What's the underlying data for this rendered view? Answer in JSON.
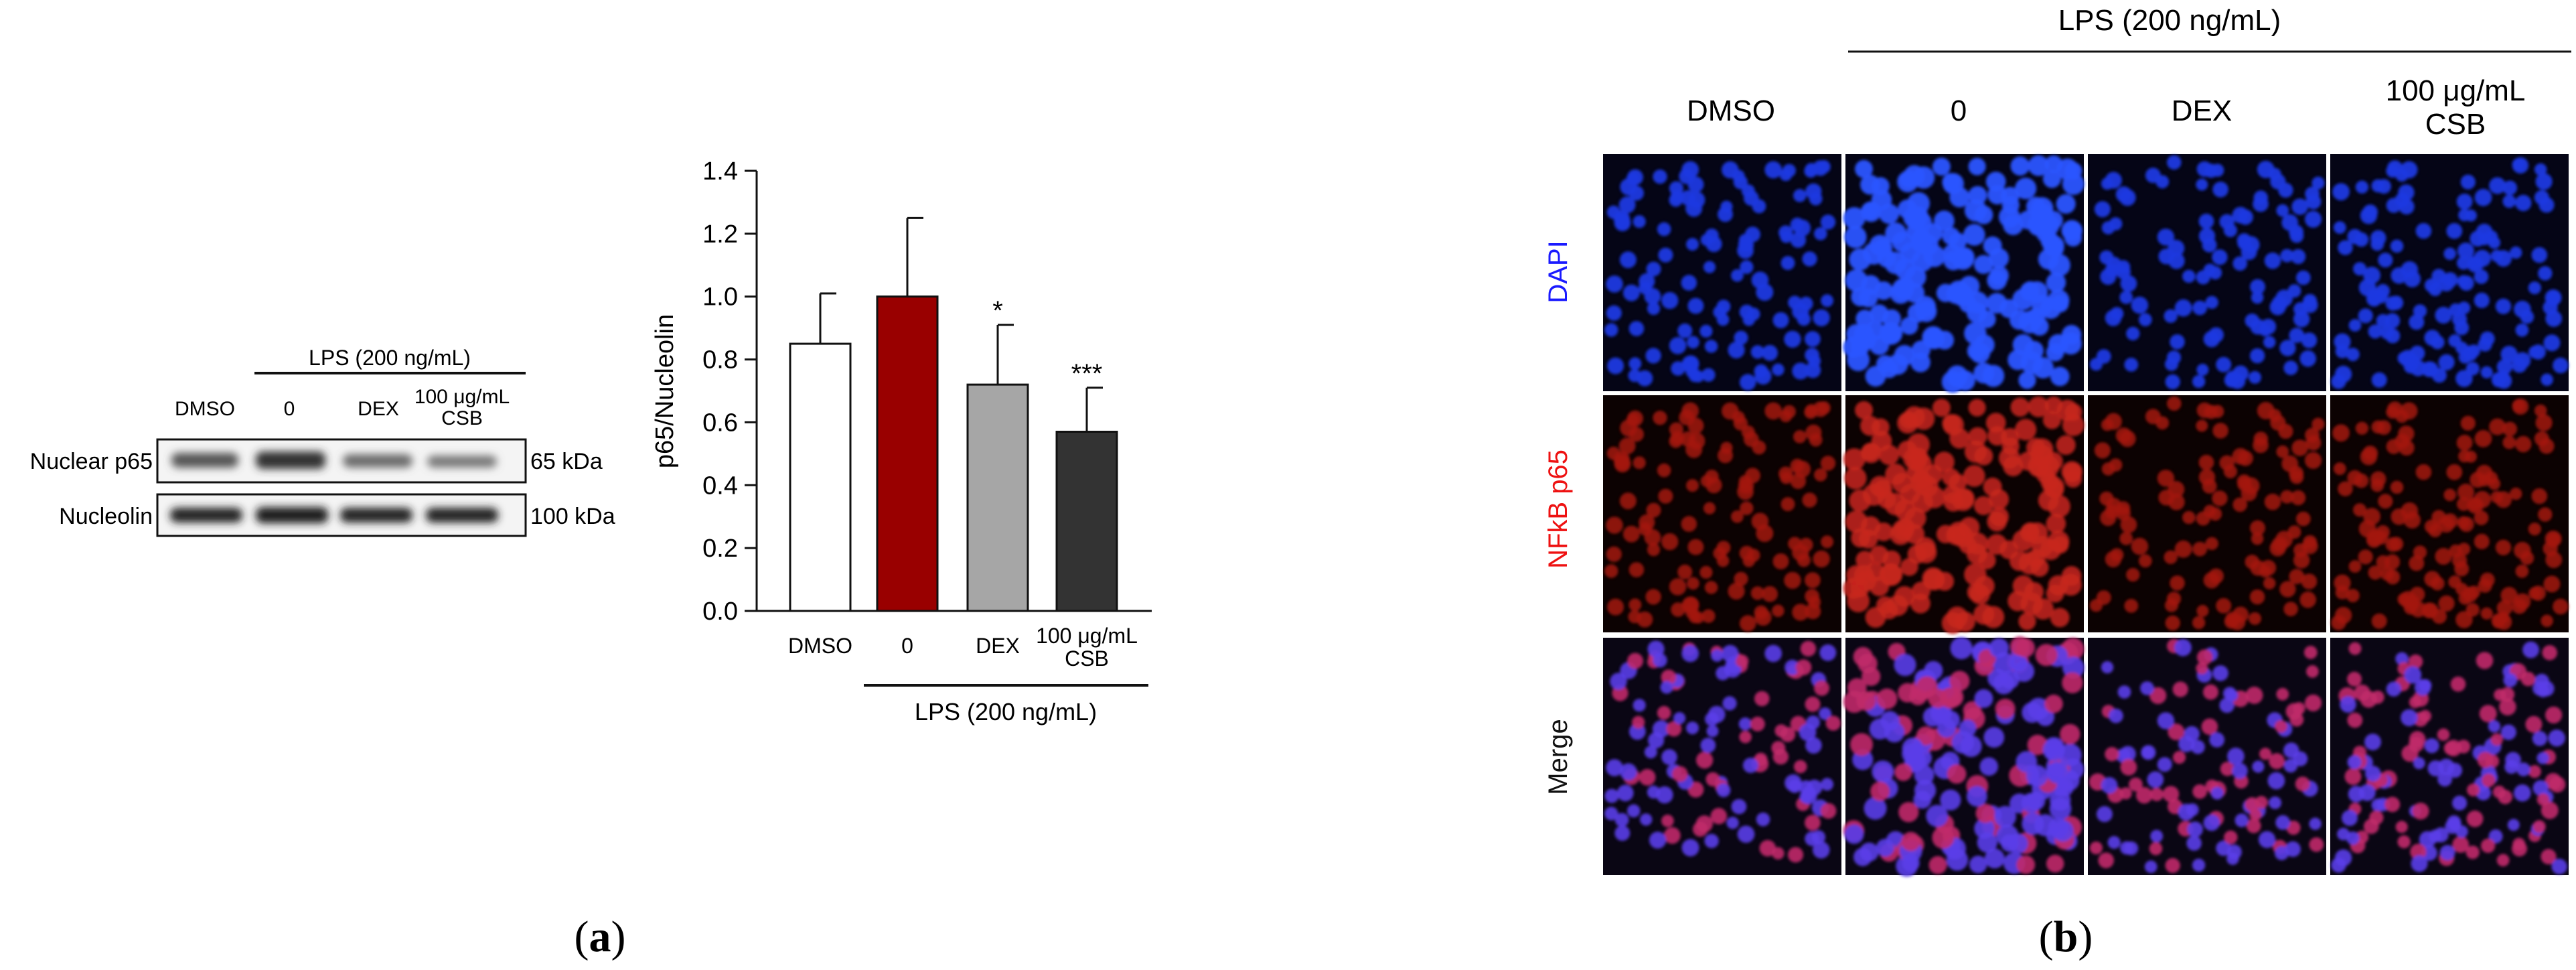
{
  "panel_a": {
    "label_open": "(",
    "label_letter": "a",
    "label_close": ")",
    "western_blot": {
      "treatment_header": "LPS (200 ng/mL)",
      "lanes": [
        "DMSO",
        "0",
        "DEX",
        "100 μg/mL",
        "CSB"
      ],
      "rows": [
        {
          "protein": "Nuclear p65",
          "size": "65 kDa"
        },
        {
          "protein": "Nucleolin",
          "size": "100 kDa"
        }
      ]
    },
    "bar_chart_ylabel": "p65/Nucleolin",
    "bar_chart_bracket_label": "LPS (200 ng/mL)"
  },
  "panel_b": {
    "label_open": "(",
    "label_letter": "b",
    "label_close": ")",
    "treatment_header": "LPS (200 ng/mL)",
    "columns": [
      "DMSO",
      "0",
      "DEX",
      "100 μg/mL",
      "CSB"
    ],
    "rows": [
      {
        "label": "DAPI",
        "color": "#1a1aff"
      },
      {
        "label": "NFkB p65",
        "color": "#ee1111"
      },
      {
        "label": "Merge",
        "color": "#111111"
      }
    ]
  },
  "chart_data": {
    "type": "bar",
    "categories": [
      "DMSO",
      "0",
      "DEX",
      "100 μg/mL CSB"
    ],
    "category_lines": [
      [
        "DMSO"
      ],
      [
        "0"
      ],
      [
        "DEX"
      ],
      [
        "100 μg/mL",
        "CSB"
      ]
    ],
    "values": [
      0.85,
      1.0,
      0.72,
      0.57
    ],
    "errors": [
      0.16,
      0.25,
      0.19,
      0.14
    ],
    "significance": [
      "",
      "",
      "*",
      "***"
    ],
    "colors": [
      "#ffffff",
      "#990000",
      "#a6a6a6",
      "#333333"
    ],
    "ylabel": "p65/Nucleolin",
    "ylim": [
      0,
      1.4
    ],
    "yticks": [
      "0.0",
      "0.2",
      "0.4",
      "0.6",
      "0.8",
      "1.0",
      "1.2",
      "1.4"
    ],
    "grid": false,
    "legend": "none"
  }
}
